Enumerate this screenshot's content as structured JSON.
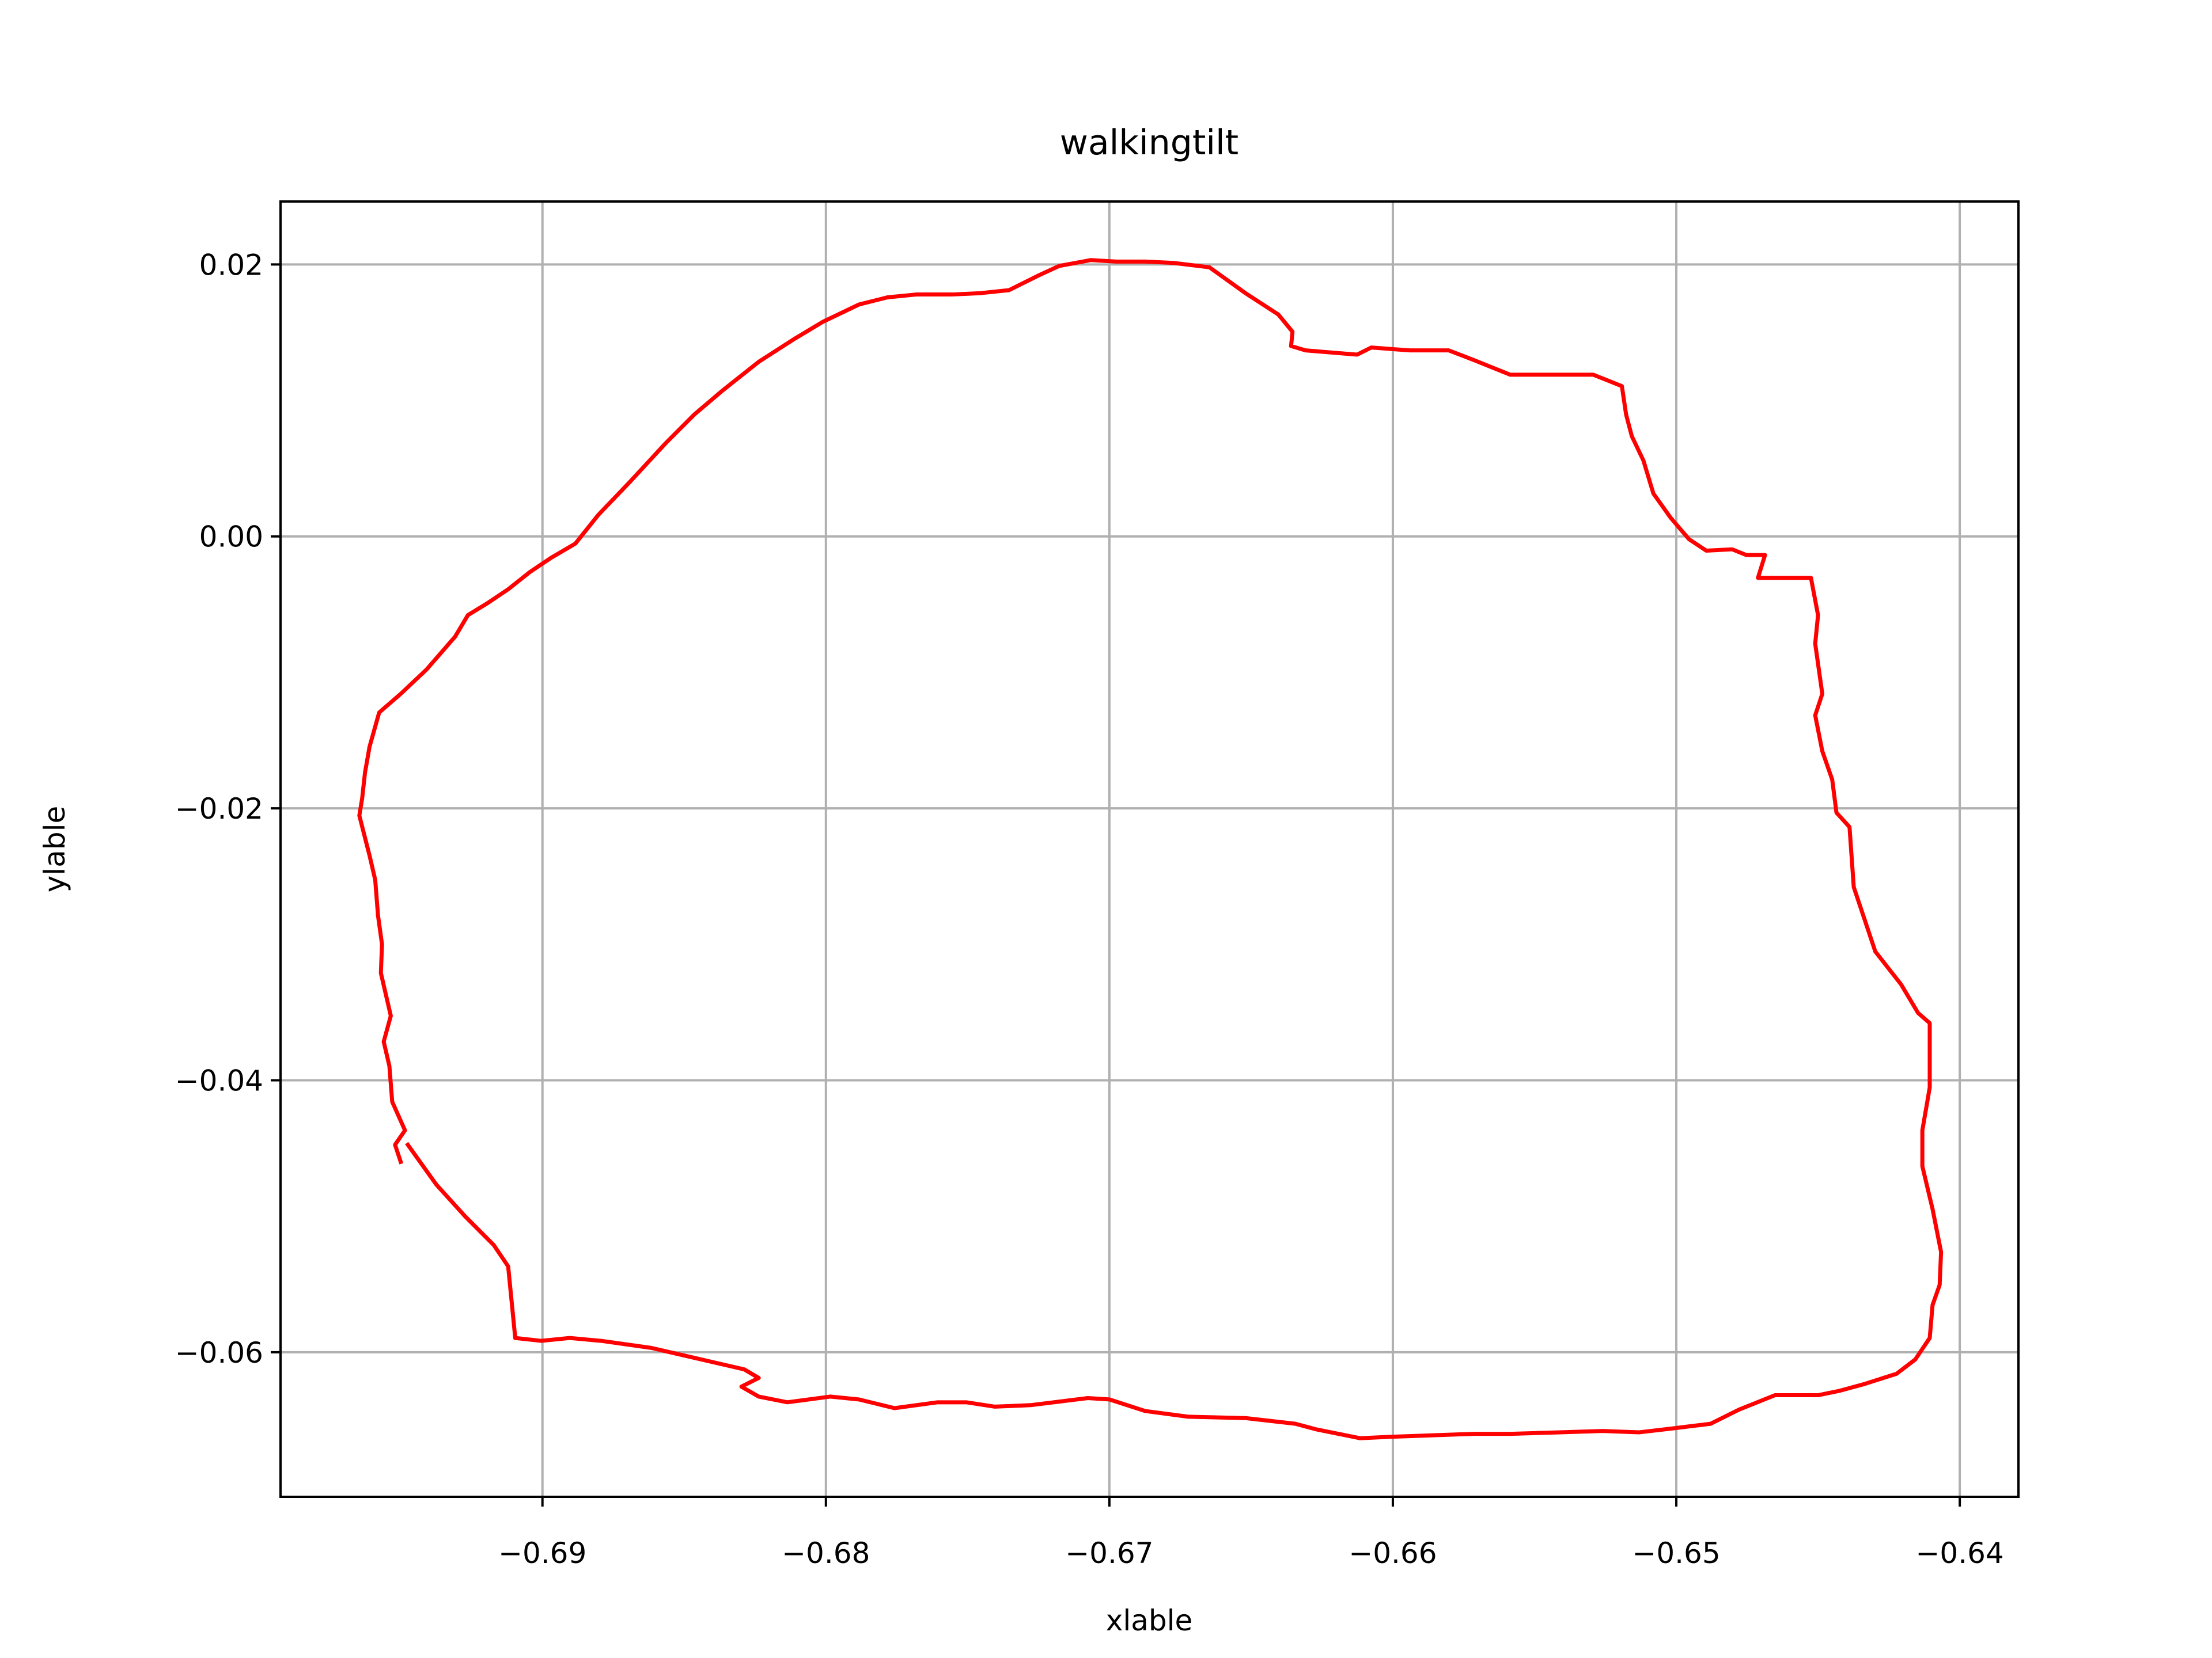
{
  "chart_data": {
    "type": "line",
    "title": "walkingtilt",
    "x_label": "xlable",
    "y_label": "ylable",
    "color": "#ff0000",
    "grid": true,
    "xlim": [
      -0.69924,
      -0.63793
    ],
    "ylim": [
      -0.07063,
      0.02463
    ],
    "xticks": [
      {
        "value": -0.69,
        "label": "−0.69"
      },
      {
        "value": -0.68,
        "label": "−0.68"
      },
      {
        "value": -0.67,
        "label": "−0.67"
      },
      {
        "value": -0.66,
        "label": "−0.66"
      },
      {
        "value": -0.65,
        "label": "−0.65"
      },
      {
        "value": -0.64,
        "label": "−0.64"
      }
    ],
    "yticks": [
      0.02,
      {
        "value": 0,
        "label": "0.00"
      },
      {
        "value": -0.02,
        "label": "−0.02"
      },
      {
        "value": -0.04,
        "label": "−0.04"
      },
      {
        "value": -0.06,
        "label": "−0.06"
      }
    ],
    "x": [
      -0.695,
      -0.6952,
      -0.69485,
      -0.6953,
      -0.6954,
      -0.6956,
      -0.69535,
      -0.6957,
      -0.69566,
      -0.6958,
      -0.6959,
      -0.6961,
      -0.69646,
      -0.69636,
      -0.69626,
      -0.6961,
      -0.69576,
      -0.695,
      -0.69409,
      -0.69308,
      -0.69263,
      -0.69197,
      -0.69121,
      -0.69045,
      -0.6897,
      -0.68884,
      -0.68803,
      -0.68692,
      -0.68566,
      -0.68465,
      -0.68364,
      -0.68237,
      -0.68111,
      -0.6801,
      -0.67884,
      -0.67783,
      -0.67682,
      -0.67556,
      -0.67455,
      -0.67354,
      -0.67253,
      -0.67177,
      -0.67066,
      -0.66975,
      -0.66874,
      -0.66773,
      -0.66647,
      -0.6652,
      -0.66404,
      -0.66354,
      -0.66359,
      -0.66308,
      -0.66126,
      -0.66076,
      -0.6594,
      -0.65803,
      -0.65712,
      -0.65586,
      -0.6546,
      -0.65293,
      -0.65192,
      -0.65177,
      -0.65157,
      -0.65116,
      -0.65081,
      -0.6502,
      -0.64955,
      -0.64894,
      -0.64803,
      -0.64753,
      -0.64687,
      -0.64712,
      -0.64525,
      -0.645,
      -0.6451,
      -0.64485,
      -0.6451,
      -0.64485,
      -0.6445,
      -0.64435,
      -0.64389,
      -0.64374,
      -0.64298,
      -0.64207,
      -0.64147,
      -0.64106,
      -0.64106,
      -0.64132,
      -0.64132,
      -0.64096,
      -0.64066,
      -0.64071,
      -0.64096,
      -0.64106,
      -0.64157,
      -0.64223,
      -0.64334,
      -0.64425,
      -0.645,
      -0.64652,
      -0.64778,
      -0.64879,
      -0.65005,
      -0.65132,
      -0.65258,
      -0.6541,
      -0.65586,
      -0.65712,
      -0.65864,
      -0.66,
      -0.66116,
      -0.66268,
      -0.66344,
      -0.6652,
      -0.66722,
      -0.66874,
      -0.67,
      -0.67076,
      -0.67278,
      -0.67404,
      -0.67505,
      -0.67606,
      -0.67758,
      -0.67884,
      -0.67985,
      -0.68136,
      -0.68237,
      -0.68298,
      -0.68237,
      -0.68288,
      -0.68616,
      -0.68793,
      -0.68904,
      -0.69005,
      -0.69096,
      -0.69106,
      -0.69121,
      -0.69172,
      -0.69273,
      -0.69374,
      -0.69475
    ],
    "values": [
      -0.046,
      -0.04474,
      -0.04368,
      -0.04158,
      -0.03895,
      -0.03716,
      -0.03526,
      -0.03211,
      -0.03,
      -0.0279,
      -0.02526,
      -0.02347,
      -0.02053,
      -0.01926,
      -0.01737,
      -0.01547,
      -0.01295,
      -0.01158,
      -0.00979,
      -0.00737,
      -0.00579,
      -0.00495,
      -0.00389,
      -0.00263,
      -0.00158,
      -0.00053,
      0.00158,
      0.004,
      0.00684,
      0.00895,
      0.01074,
      0.01284,
      0.01453,
      0.01579,
      0.01705,
      0.01758,
      0.01779,
      0.01779,
      0.01789,
      0.01811,
      0.01916,
      0.01989,
      0.02032,
      0.02021,
      0.02021,
      0.02011,
      0.01979,
      0.01789,
      0.01632,
      0.01505,
      0.014,
      0.01368,
      0.01337,
      0.01389,
      0.01368,
      0.01368,
      0.01295,
      0.01189,
      0.01189,
      0.01189,
      0.01105,
      0.00895,
      0.00737,
      0.00558,
      0.00316,
      0.00137,
      -0.00021,
      -0.00105,
      -0.00095,
      -0.00137,
      -0.00137,
      -0.00305,
      -0.00305,
      -0.00579,
      -0.00789,
      -0.01158,
      -0.01316,
      -0.01579,
      -0.01789,
      -0.02032,
      -0.02137,
      -0.02579,
      -0.03053,
      -0.03295,
      -0.03505,
      -0.03579,
      -0.04053,
      -0.04368,
      -0.04632,
      -0.04947,
      -0.05263,
      -0.05505,
      -0.05653,
      -0.05895,
      -0.06053,
      -0.06158,
      -0.06232,
      -0.06284,
      -0.06316,
      -0.06316,
      -0.06421,
      -0.06526,
      -0.06558,
      -0.06589,
      -0.06579,
      -0.06589,
      -0.066,
      -0.066,
      -0.06611,
      -0.06621,
      -0.06632,
      -0.06568,
      -0.06526,
      -0.06484,
      -0.06474,
      -0.06432,
      -0.06347,
      -0.06337,
      -0.06389,
      -0.064,
      -0.06368,
      -0.06368,
      -0.06411,
      -0.06347,
      -0.06326,
      -0.06368,
      -0.06326,
      -0.06253,
      -0.06189,
      -0.06126,
      -0.05968,
      -0.05916,
      -0.05895,
      -0.05916,
      -0.05895,
      -0.05684,
      -0.05368,
      -0.05211,
      -0.05,
      -0.04768,
      -0.04474
    ]
  }
}
